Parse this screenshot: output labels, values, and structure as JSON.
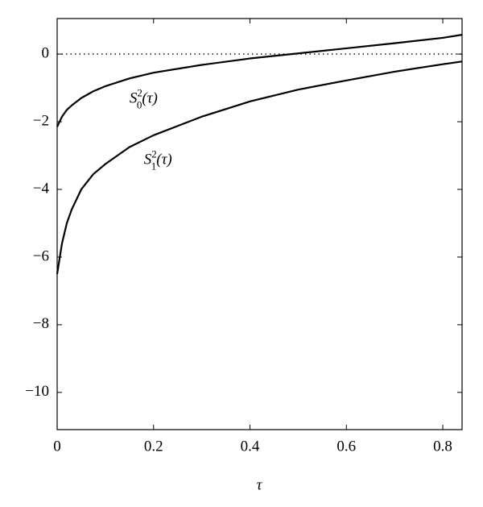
{
  "chart_data": {
    "type": "line",
    "x_label": "τ",
    "x": [
      0,
      0.01,
      0.02,
      0.03,
      0.05,
      0.075,
      0.1,
      0.15,
      0.2,
      0.3,
      0.4,
      0.5,
      0.6,
      0.7,
      0.8,
      0.84
    ],
    "series": [
      {
        "color": "#000000",
        "values": [
          -2.15,
          -1.85,
          -1.65,
          -1.52,
          -1.3,
          -1.1,
          -0.95,
          -0.72,
          -0.55,
          -0.32,
          -0.13,
          0.02,
          0.17,
          0.32,
          0.48,
          0.57
        ]
      },
      {
        "color": "#000000",
        "values": [
          -6.5,
          -5.6,
          -5.0,
          -4.6,
          -4.0,
          -3.55,
          -3.25,
          -2.75,
          -2.4,
          -1.85,
          -1.4,
          -1.05,
          -0.78,
          -0.52,
          -0.3,
          -0.22
        ]
      }
    ],
    "annotations": [
      {
        "text": "S",
        "sub": "0",
        "sup": "2",
        "arg": "(τ)",
        "x": 0.15,
        "y": -1.35
      },
      {
        "text": "S",
        "sub": "1",
        "sup": "2",
        "arg": "(τ)",
        "x": 0.18,
        "y": -3.15
      }
    ],
    "reference_line": {
      "y": 0,
      "style": "dotted"
    },
    "xlim": [
      0,
      0.84
    ],
    "ylim": [
      -11.1,
      1.05
    ],
    "xticks": [
      0,
      0.2,
      0.4,
      0.6,
      0.8
    ],
    "yticks": [
      {
        "value": -10,
        "label": "−10"
      },
      {
        "value": -8,
        "label": "−8"
      },
      {
        "value": -6,
        "label": "−6"
      },
      {
        "value": -4,
        "label": "−4"
      },
      {
        "value": -2,
        "label": "−2"
      },
      0
    ],
    "grid": false
  }
}
